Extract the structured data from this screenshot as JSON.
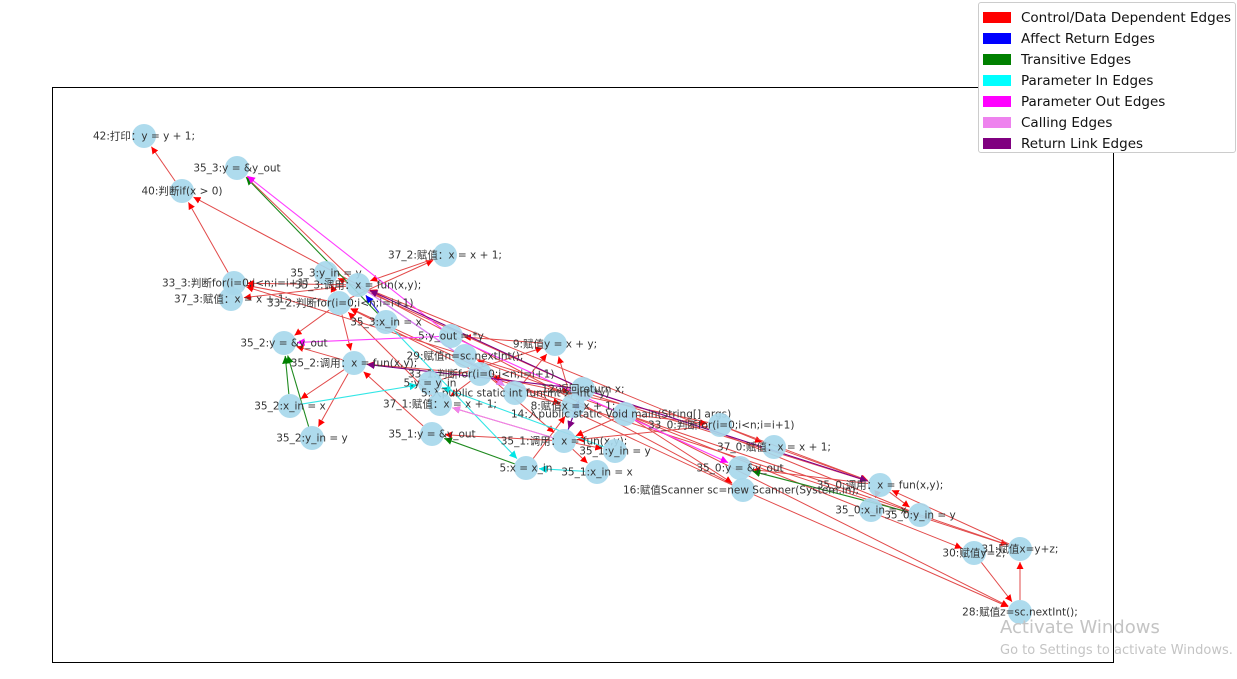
{
  "graph": {
    "legend": [
      {
        "label": "Control/Data Dependent Edges",
        "color": "#ff0000"
      },
      {
        "label": "Affect Return Edges",
        "color": "#0000ff"
      },
      {
        "label": "Transitive Edges",
        "color": "#008000"
      },
      {
        "label": "Parameter In Edges",
        "color": "#00ffff"
      },
      {
        "label": "Parameter Out Edges",
        "color": "#ff00ff"
      },
      {
        "label": "Calling Edges",
        "color": "#ee82ee"
      },
      {
        "label": "Return Link Edges",
        "color": "#800080"
      }
    ],
    "nodes": [
      {
        "id": "n42",
        "label": "42:打印：y = y + 1;"
      },
      {
        "id": "n35_3y",
        "label": "35_3:y = &y_out"
      },
      {
        "id": "n40",
        "label": "40:判断if(x > 0)"
      },
      {
        "id": "n37_2",
        "label": "37_2:赋值：x = x + 1;"
      },
      {
        "id": "n35_3yin",
        "label": "35_3:y_in = y"
      },
      {
        "id": "n33_3",
        "label": "33_3:判断for(i=0;i<n;i=i+1)"
      },
      {
        "id": "n35_3call",
        "label": "35_3:调用：x = fun(x,y);"
      },
      {
        "id": "n37_3",
        "label": "37_3:赋值：x = x + 1;"
      },
      {
        "id": "n33_2",
        "label": "33_2:判断for(i=0;i<n;i=i+1)"
      },
      {
        "id": "n35_3xin",
        "label": "35_3:x_in = x"
      },
      {
        "id": "n5yout",
        "label": "5:y_out = *y"
      },
      {
        "id": "n9",
        "label": "9:赋值y = x + y;"
      },
      {
        "id": "n35_2y",
        "label": "35_2:y = &y_out"
      },
      {
        "id": "n29",
        "label": "29:赋值n=sc.nextInt();"
      },
      {
        "id": "n35_2call",
        "label": "35_2:调用：x = fun(x,y);"
      },
      {
        "id": "n33_1",
        "label": "33_1:判断for(i=0;i<n;i=i+1)"
      },
      {
        "id": "n5yin",
        "label": "5:y = y_in"
      },
      {
        "id": "n12",
        "label": "12:返回return x;"
      },
      {
        "id": "n5fun",
        "label": "5:入public static int fun(int x, int *y)"
      },
      {
        "id": "n8",
        "label": "8:赋值x = x + 1;"
      },
      {
        "id": "n14",
        "label": "14:入public static Void main(String[] args)"
      },
      {
        "id": "n35_2xin",
        "label": "35_2:x_in = x"
      },
      {
        "id": "n37_1",
        "label": "37_1:赋值：x = x + 1;"
      },
      {
        "id": "n33_0",
        "label": "33_0:判断for(i=0;i<n;i=i+1)"
      },
      {
        "id": "n35_2yin",
        "label": "35_2:y_in = y"
      },
      {
        "id": "n35_1y",
        "label": "35_1:y = &y_out"
      },
      {
        "id": "n35_1call",
        "label": "35_1:调用：x = fun(x,y);"
      },
      {
        "id": "n37_0",
        "label": "37_0:赋值：x = x + 1;"
      },
      {
        "id": "n35_1yin",
        "label": "35_1:y_in = y"
      },
      {
        "id": "n5xin",
        "label": "5:x = x_in"
      },
      {
        "id": "n35_1xin",
        "label": "35_1:x_in = x"
      },
      {
        "id": "n35_0y",
        "label": "35_0:y = &y_out"
      },
      {
        "id": "n16",
        "label": "16:赋值Scanner sc=new Scanner(System.in);"
      },
      {
        "id": "n35_0call",
        "label": "35_0:调用：x = fun(x,y);"
      },
      {
        "id": "n35_0xin",
        "label": "35_0:x_in = x"
      },
      {
        "id": "n35_0yin",
        "label": "35_0:y_in = y"
      },
      {
        "id": "n30",
        "label": "30:赋值y=2;"
      },
      {
        "id": "n31",
        "label": "31:赋值x=y+z;"
      },
      {
        "id": "n28",
        "label": "28:赋值z=sc.nextInt();"
      }
    ],
    "edges": [
      {
        "from": "n40",
        "to": "n42",
        "type": "control"
      },
      {
        "from": "n33_3",
        "to": "n40",
        "type": "control"
      },
      {
        "from": "n16",
        "to": "n40",
        "type": "control"
      },
      {
        "from": "n33_3",
        "to": "n37_3",
        "type": "control"
      },
      {
        "from": "n35_3call",
        "to": "n37_3",
        "type": "control"
      },
      {
        "from": "n33_2",
        "to": "n33_3",
        "type": "control"
      },
      {
        "from": "n33_2",
        "to": "n37_2",
        "type": "control"
      },
      {
        "from": "n33_2",
        "to": "n35_3yin",
        "type": "control"
      },
      {
        "from": "n35_3xin",
        "to": "n35_3call",
        "type": "control"
      },
      {
        "from": "n33_2",
        "to": "n35_2call",
        "type": "control"
      },
      {
        "from": "n33_2",
        "to": "n35_2y",
        "type": "control"
      },
      {
        "from": "n35_2call",
        "to": "n35_2xin",
        "type": "control"
      },
      {
        "from": "n35_2call",
        "to": "n35_2yin",
        "type": "control"
      },
      {
        "from": "n33_1",
        "to": "n35_2call",
        "type": "control"
      },
      {
        "from": "n33_1",
        "to": "n33_2",
        "type": "control"
      },
      {
        "from": "n37_1",
        "to": "n33_2",
        "type": "control"
      },
      {
        "from": "n35_1call",
        "to": "n37_1",
        "type": "control"
      },
      {
        "from": "n33_0",
        "to": "n33_1",
        "type": "control"
      },
      {
        "from": "n33_0",
        "to": "n35_1call",
        "type": "control"
      },
      {
        "from": "n33_0",
        "to": "n37_0",
        "type": "control"
      },
      {
        "from": "n35_1call",
        "to": "n35_1yin",
        "type": "control"
      },
      {
        "from": "n35_1call",
        "to": "n35_1xin",
        "type": "control"
      },
      {
        "from": "n35_1call",
        "to": "n35_1y",
        "type": "control"
      },
      {
        "from": "n14",
        "to": "n35_1call",
        "type": "control"
      },
      {
        "from": "n14",
        "to": "n29",
        "type": "control"
      },
      {
        "from": "n14",
        "to": "n33_0",
        "type": "control"
      },
      {
        "from": "n14",
        "to": "n16",
        "type": "control"
      },
      {
        "from": "n14",
        "to": "n28",
        "type": "control"
      },
      {
        "from": "n14",
        "to": "n30",
        "type": "control"
      },
      {
        "from": "n14",
        "to": "n31",
        "type": "control"
      },
      {
        "from": "n5fun",
        "to": "n8",
        "type": "control"
      },
      {
        "from": "n5fun",
        "to": "n9",
        "type": "control"
      },
      {
        "from": "n5fun",
        "to": "n12",
        "type": "control"
      },
      {
        "from": "n8",
        "to": "n9",
        "type": "control"
      },
      {
        "from": "n8",
        "to": "n12",
        "type": "control"
      },
      {
        "from": "n5xin",
        "to": "n8",
        "type": "control"
      },
      {
        "from": "n9",
        "to": "n5yout",
        "type": "control"
      },
      {
        "from": "n5yin",
        "to": "n9",
        "type": "control"
      },
      {
        "from": "n37_2",
        "to": "n35_3call",
        "type": "control"
      },
      {
        "from": "n35_3call",
        "to": "n35_3y",
        "type": "control"
      },
      {
        "from": "n37_0",
        "to": "n35_0call",
        "type": "control"
      },
      {
        "from": "n35_0call",
        "to": "n35_0xin",
        "type": "control"
      },
      {
        "from": "n35_0call",
        "to": "n35_0yin",
        "type": "control"
      },
      {
        "from": "n35_0call",
        "to": "n35_0y",
        "type": "control"
      },
      {
        "from": "n33_0",
        "to": "n35_0call",
        "type": "control"
      },
      {
        "from": "n31",
        "to": "n35_0call",
        "type": "control"
      },
      {
        "from": "n28",
        "to": "n31",
        "type": "control"
      },
      {
        "from": "n30",
        "to": "n28",
        "type": "control"
      },
      {
        "from": "n29",
        "to": "n35_1call",
        "type": "control"
      },
      {
        "from": "n16",
        "to": "n28",
        "type": "control"
      },
      {
        "from": "n35_0call",
        "to": "n33_3",
        "type": "control"
      },
      {
        "from": "n35_0yin",
        "to": "n35_3call",
        "type": "control"
      },
      {
        "from": "n35_1y",
        "to": "n35_2call",
        "type": "control"
      },
      {
        "from": "n12",
        "to": "n35_3yin",
        "type": "control"
      },
      {
        "from": "n33_1",
        "to": "n37_1",
        "type": "control"
      },
      {
        "from": "n16",
        "to": "n33_2",
        "type": "control"
      },
      {
        "from": "n31",
        "to": "n33_1",
        "type": "control"
      },
      {
        "from": "n35_2call",
        "to": "n35_2y",
        "type": "control"
      },
      {
        "from": "n35_3call",
        "to": "n33_3",
        "type": "control"
      },
      {
        "from": "n35_3call",
        "to": "n5fun",
        "type": "affect_return"
      },
      {
        "from": "n35_1call",
        "to": "n12",
        "type": "affect_return"
      },
      {
        "from": "n35_3xin",
        "to": "n35_3call",
        "type": "affect_return"
      },
      {
        "from": "n35_3xin",
        "to": "n35_3y",
        "type": "transitive"
      },
      {
        "from": "n35_2yin",
        "to": "n35_2y",
        "type": "transitive"
      },
      {
        "from": "n35_2xin",
        "to": "n35_2y",
        "type": "transitive"
      },
      {
        "from": "n5xin",
        "to": "n35_1y",
        "type": "transitive"
      },
      {
        "from": "n35_0yin",
        "to": "n35_0y",
        "type": "transitive"
      },
      {
        "from": "n35_3xin",
        "to": "n5xin",
        "type": "param_in"
      },
      {
        "from": "n35_1xin",
        "to": "n5xin",
        "type": "param_in"
      },
      {
        "from": "n35_2xin",
        "to": "n5yin",
        "type": "param_in"
      },
      {
        "from": "n35_1yin",
        "to": "n5yin",
        "type": "param_in"
      },
      {
        "from": "n5yout",
        "to": "n35_3y",
        "type": "param_out"
      },
      {
        "from": "n5yout",
        "to": "n35_2y",
        "type": "param_out"
      },
      {
        "from": "n5yout",
        "to": "n35_0y",
        "type": "param_out"
      },
      {
        "from": "n35_3call",
        "to": "n5fun",
        "type": "calling"
      },
      {
        "from": "n35_1call",
        "to": "n37_1",
        "type": "calling"
      },
      {
        "from": "n12",
        "to": "n35_0call",
        "type": "calling"
      },
      {
        "from": "n12",
        "to": "n35_2call",
        "type": "return_link"
      },
      {
        "from": "n12",
        "to": "n35_3call",
        "type": "return_link"
      },
      {
        "from": "n12",
        "to": "n35_1call",
        "type": "return_link"
      },
      {
        "from": "n12",
        "to": "n35_0call",
        "type": "return_link"
      }
    ]
  },
  "watermark": {
    "title": "Activate Windows",
    "subtitle": "Go to Settings to activate Windows."
  }
}
